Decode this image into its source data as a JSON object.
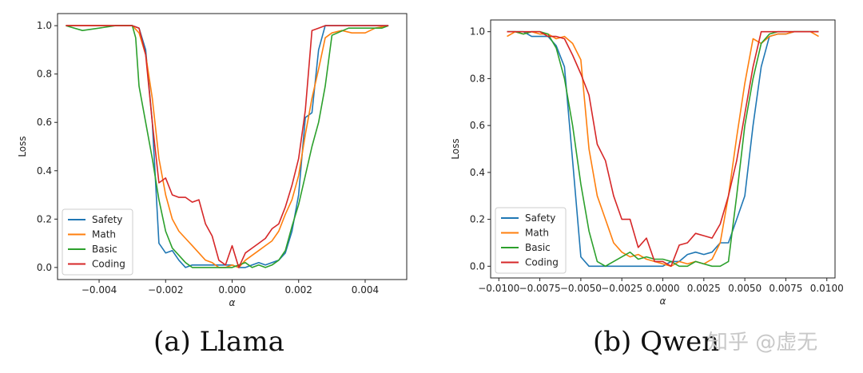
{
  "chart_data": [
    {
      "type": "line",
      "title": "",
      "caption": "(a) Llama",
      "xlabel": "α",
      "ylabel": "Loss",
      "xlim": [
        -0.00525,
        0.00525
      ],
      "ylim": [
        -0.05,
        1.05
      ],
      "xticks": [
        -0.004,
        -0.002,
        0.0,
        0.002,
        0.004
      ],
      "xtick_labels": [
        "−0.004",
        "−0.002",
        "0.000",
        "0.002",
        "0.004"
      ],
      "yticks": [
        0.0,
        0.2,
        0.4,
        0.6,
        0.8,
        1.0
      ],
      "ytick_labels": [
        "0.0",
        "0.2",
        "0.4",
        "0.6",
        "0.8",
        "1.0"
      ],
      "legend_position": "lower-left",
      "series": [
        {
          "name": "Safety",
          "color": "#1f77b4",
          "x": [
            -0.005,
            -0.0045,
            -0.004,
            -0.0035,
            -0.003,
            -0.0028,
            -0.0026,
            -0.0024,
            -0.0022,
            -0.002,
            -0.0018,
            -0.0016,
            -0.0014,
            -0.0012,
            -0.001,
            -0.0008,
            -0.0006,
            -0.0004,
            -0.0002,
            0,
            0.0002,
            0.0004,
            0.0006,
            0.0008,
            0.001,
            0.0012,
            0.0014,
            0.0016,
            0.0018,
            0.002,
            0.0022,
            0.0024,
            0.0026,
            0.0028,
            0.003,
            0.0035,
            0.004,
            0.0045,
            0.0047
          ],
          "y": [
            1.0,
            1.0,
            1.0,
            1.0,
            1.0,
            0.99,
            0.9,
            0.6,
            0.1,
            0.06,
            0.07,
            0.03,
            0.0,
            0.01,
            0.01,
            0.01,
            0.01,
            0.01,
            0.01,
            0.01,
            0.0,
            0.0,
            0.01,
            0.02,
            0.01,
            0.02,
            0.03,
            0.06,
            0.15,
            0.3,
            0.62,
            0.64,
            0.9,
            1.0,
            1.0,
            1.0,
            1.0,
            1.0,
            1.0
          ]
        },
        {
          "name": "Math",
          "color": "#ff7f0e",
          "x": [
            -0.005,
            -0.0045,
            -0.004,
            -0.0035,
            -0.003,
            -0.0028,
            -0.0026,
            -0.0024,
            -0.0022,
            -0.002,
            -0.0018,
            -0.0016,
            -0.0014,
            -0.0012,
            -0.001,
            -0.0008,
            -0.0006,
            -0.0004,
            -0.0002,
            0,
            0.0002,
            0.0004,
            0.0006,
            0.0008,
            0.001,
            0.0012,
            0.0014,
            0.0016,
            0.0018,
            0.002,
            0.0022,
            0.0024,
            0.0026,
            0.0028,
            0.003,
            0.0033,
            0.0036,
            0.004,
            0.0043,
            0.0047
          ],
          "y": [
            1.0,
            1.0,
            1.0,
            1.0,
            1.0,
            0.97,
            0.88,
            0.7,
            0.45,
            0.3,
            0.2,
            0.15,
            0.12,
            0.09,
            0.06,
            0.03,
            0.02,
            0.0,
            0.0,
            0.01,
            0.0,
            0.03,
            0.05,
            0.07,
            0.09,
            0.11,
            0.15,
            0.22,
            0.28,
            0.38,
            0.55,
            0.7,
            0.82,
            0.95,
            0.97,
            0.98,
            0.97,
            0.97,
            0.99,
            1.0
          ]
        },
        {
          "name": "Basic",
          "color": "#2ca02c",
          "x": [
            -0.005,
            -0.0045,
            -0.004,
            -0.0035,
            -0.003,
            -0.0029,
            -0.0028,
            -0.0026,
            -0.0024,
            -0.0022,
            -0.002,
            -0.0018,
            -0.0016,
            -0.0014,
            -0.0012,
            -0.001,
            -0.0008,
            -0.0006,
            -0.0004,
            -0.0002,
            0,
            0.0002,
            0.0004,
            0.0006,
            0.0008,
            0.001,
            0.0012,
            0.0014,
            0.0016,
            0.0018,
            0.002,
            0.0022,
            0.0024,
            0.0026,
            0.0028,
            0.003,
            0.0035,
            0.004,
            0.0045,
            0.0047
          ],
          "y": [
            1.0,
            0.98,
            0.99,
            1.0,
            1.0,
            0.95,
            0.75,
            0.6,
            0.45,
            0.28,
            0.15,
            0.08,
            0.05,
            0.02,
            0.0,
            0.0,
            0.0,
            0.0,
            0.0,
            0.0,
            0.0,
            0.01,
            0.02,
            0.0,
            0.01,
            0.0,
            0.01,
            0.03,
            0.07,
            0.17,
            0.26,
            0.38,
            0.5,
            0.6,
            0.75,
            0.96,
            0.99,
            0.99,
            0.99,
            1.0
          ]
        },
        {
          "name": "Coding",
          "color": "#d62728",
          "x": [
            -0.005,
            -0.0045,
            -0.004,
            -0.0035,
            -0.003,
            -0.0028,
            -0.0026,
            -0.0024,
            -0.0022,
            -0.002,
            -0.0018,
            -0.0016,
            -0.0014,
            -0.0012,
            -0.001,
            -0.0008,
            -0.0006,
            -0.0004,
            -0.0002,
            0,
            0.0002,
            0.0004,
            0.0006,
            0.0008,
            0.001,
            0.0012,
            0.0014,
            0.0016,
            0.0018,
            0.002,
            0.0022,
            0.0024,
            0.0026,
            0.0028,
            0.003,
            0.0035,
            0.004,
            0.0045,
            0.0047
          ],
          "y": [
            1.0,
            1.0,
            1.0,
            1.0,
            1.0,
            0.99,
            0.88,
            0.6,
            0.35,
            0.37,
            0.3,
            0.29,
            0.29,
            0.27,
            0.28,
            0.18,
            0.13,
            0.03,
            0.01,
            0.09,
            0.0,
            0.06,
            0.08,
            0.1,
            0.12,
            0.16,
            0.18,
            0.25,
            0.34,
            0.45,
            0.65,
            0.98,
            0.99,
            1.0,
            1.0,
            1.0,
            1.0,
            1.0,
            1.0
          ]
        }
      ]
    },
    {
      "type": "line",
      "title": "",
      "caption": "(b) Qwen",
      "xlabel": "α",
      "ylabel": "Loss",
      "xlim": [
        -0.0105,
        0.0105
      ],
      "ylim": [
        -0.05,
        1.05
      ],
      "xticks": [
        -0.01,
        -0.0075,
        -0.005,
        -0.0025,
        0.0,
        0.0025,
        0.005,
        0.0075,
        0.01
      ],
      "xtick_labels": [
        "−0.0100",
        "−0.0075",
        "−0.0050",
        "−0.0025",
        "0.0000",
        "0.0025",
        "0.0050",
        "0.0075",
        "0.0100"
      ],
      "yticks": [
        0.0,
        0.2,
        0.4,
        0.6,
        0.8,
        1.0
      ],
      "ytick_labels": [
        "0.0",
        "0.2",
        "0.4",
        "0.6",
        "0.8",
        "1.0"
      ],
      "legend_position": "lower-left",
      "series": [
        {
          "name": "Safety",
          "color": "#1f77b4",
          "x": [
            -0.0095,
            -0.009,
            -0.0085,
            -0.008,
            -0.0075,
            -0.007,
            -0.0065,
            -0.006,
            -0.0055,
            -0.005,
            -0.0045,
            -0.004,
            -0.0035,
            -0.003,
            -0.0025,
            -0.002,
            -0.0015,
            -0.001,
            -0.0005,
            0,
            0.0005,
            0.001,
            0.0015,
            0.002,
            0.0025,
            0.003,
            0.0035,
            0.004,
            0.0045,
            0.005,
            0.0055,
            0.006,
            0.0065,
            0.007,
            0.0075,
            0.008,
            0.0085,
            0.009,
            0.0095
          ],
          "y": [
            1.0,
            1.0,
            1.0,
            0.98,
            0.98,
            0.98,
            0.94,
            0.85,
            0.45,
            0.04,
            0.0,
            0.0,
            0.0,
            0.0,
            0.0,
            0.0,
            0.0,
            0.0,
            0.0,
            0.0,
            0.02,
            0.02,
            0.05,
            0.06,
            0.05,
            0.06,
            0.1,
            0.1,
            0.2,
            0.3,
            0.6,
            0.85,
            0.98,
            0.99,
            0.99,
            1.0,
            1.0,
            1.0,
            1.0
          ]
        },
        {
          "name": "Math",
          "color": "#ff7f0e",
          "x": [
            -0.0095,
            -0.009,
            -0.0085,
            -0.008,
            -0.0075,
            -0.007,
            -0.0065,
            -0.006,
            -0.0055,
            -0.005,
            -0.0045,
            -0.004,
            -0.0035,
            -0.003,
            -0.0025,
            -0.002,
            -0.0015,
            -0.001,
            -0.0005,
            0,
            0.0005,
            0.001,
            0.0015,
            0.002,
            0.0025,
            0.003,
            0.0035,
            0.004,
            0.0045,
            0.005,
            0.0055,
            0.006,
            0.0065,
            0.007,
            0.0075,
            0.008,
            0.0085,
            0.009,
            0.0095
          ],
          "y": [
            0.98,
            1.0,
            0.99,
            1.0,
            0.99,
            0.99,
            0.97,
            0.98,
            0.95,
            0.88,
            0.5,
            0.3,
            0.2,
            0.1,
            0.06,
            0.04,
            0.05,
            0.03,
            0.02,
            0.01,
            0.0,
            0.02,
            0.01,
            0.02,
            0.01,
            0.03,
            0.1,
            0.3,
            0.55,
            0.78,
            0.97,
            0.95,
            0.98,
            0.99,
            0.99,
            1.0,
            1.0,
            1.0,
            0.98
          ]
        },
        {
          "name": "Basic",
          "color": "#2ca02c",
          "x": [
            -0.0095,
            -0.009,
            -0.0085,
            -0.008,
            -0.0075,
            -0.007,
            -0.0065,
            -0.006,
            -0.0055,
            -0.005,
            -0.0045,
            -0.004,
            -0.0035,
            -0.003,
            -0.0025,
            -0.002,
            -0.0015,
            -0.001,
            -0.0005,
            0,
            0.0005,
            0.001,
            0.0015,
            0.002,
            0.0025,
            0.003,
            0.0035,
            0.004,
            0.0045,
            0.005,
            0.0055,
            0.006,
            0.0065,
            0.007,
            0.0075,
            0.008,
            0.0085,
            0.009,
            0.0095
          ],
          "y": [
            1.0,
            1.0,
            0.99,
            1.0,
            1.0,
            0.99,
            0.93,
            0.8,
            0.6,
            0.35,
            0.15,
            0.02,
            0.0,
            0.02,
            0.04,
            0.06,
            0.03,
            0.04,
            0.03,
            0.03,
            0.02,
            0.0,
            0.0,
            0.02,
            0.01,
            0.0,
            0.0,
            0.02,
            0.3,
            0.6,
            0.8,
            0.95,
            0.99,
            1.0,
            1.0,
            1.0,
            1.0,
            1.0,
            1.0
          ]
        },
        {
          "name": "Coding",
          "color": "#d62728",
          "x": [
            -0.0095,
            -0.009,
            -0.0085,
            -0.008,
            -0.0075,
            -0.007,
            -0.0065,
            -0.006,
            -0.0055,
            -0.005,
            -0.0045,
            -0.004,
            -0.0035,
            -0.003,
            -0.0025,
            -0.002,
            -0.0015,
            -0.001,
            -0.0005,
            0,
            0.0005,
            0.001,
            0.0015,
            0.002,
            0.0025,
            0.003,
            0.0035,
            0.004,
            0.0045,
            0.005,
            0.0055,
            0.006,
            0.0065,
            0.007,
            0.0075,
            0.008,
            0.0085,
            0.009,
            0.0095
          ],
          "y": [
            1.0,
            1.0,
            1.0,
            1.0,
            1.0,
            0.98,
            0.98,
            0.97,
            0.9,
            0.82,
            0.73,
            0.52,
            0.45,
            0.3,
            0.2,
            0.2,
            0.08,
            0.12,
            0.02,
            0.02,
            0.0,
            0.09,
            0.1,
            0.14,
            0.13,
            0.12,
            0.18,
            0.3,
            0.45,
            0.65,
            0.85,
            1.0,
            1.0,
            1.0,
            1.0,
            1.0,
            1.0,
            1.0,
            1.0
          ]
        }
      ]
    }
  ],
  "watermark": "知乎 @虚无"
}
